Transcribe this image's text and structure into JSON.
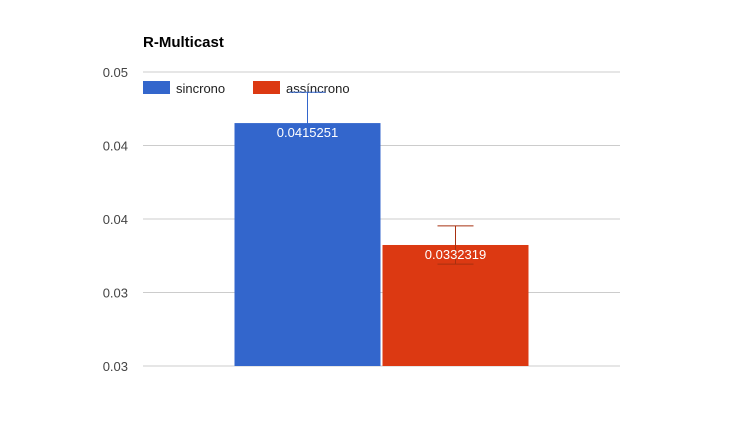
{
  "chart_data": {
    "type": "bar",
    "title": "R-Multicast",
    "categories": [
      ""
    ],
    "series": [
      {
        "name": "sincrono",
        "values": [
          0.0415251
        ],
        "error": [
          0.0021
        ],
        "color": "#3366cc",
        "value_label": "0.0415251"
      },
      {
        "name": "assíncrono",
        "values": [
          0.0332319
        ],
        "error": [
          0.0013
        ],
        "color": "#dc3912",
        "value_label": "0.0332319"
      }
    ],
    "y_ticks": [
      "0.05",
      "0.04",
      "0.04",
      "0.03",
      "0.03"
    ],
    "y_tick_values": [
      0.045,
      0.04,
      0.035,
      0.03,
      0.025
    ],
    "ylim": [
      0.025,
      0.045
    ],
    "xlabel": "",
    "ylabel": "",
    "grid": true,
    "legend_position": "top-left"
  }
}
